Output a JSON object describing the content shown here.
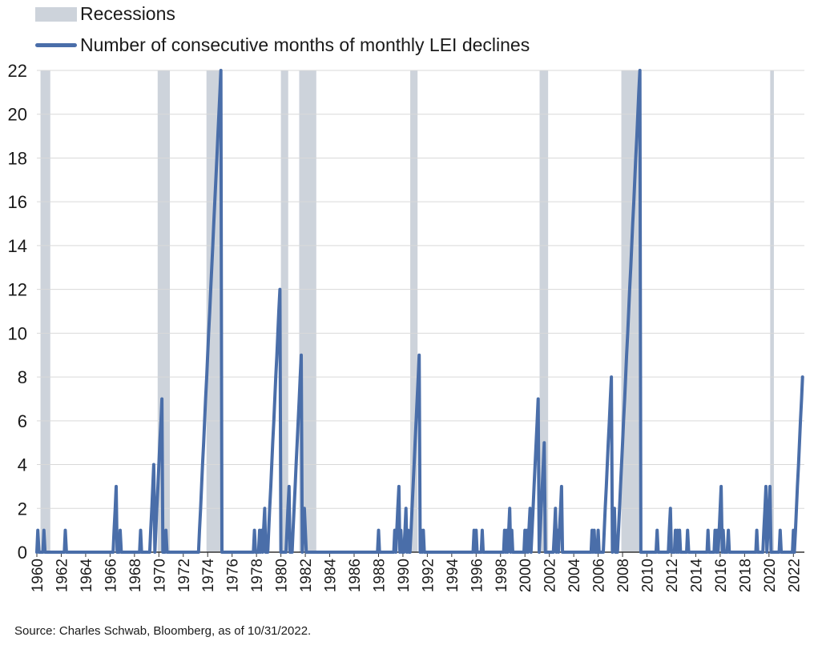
{
  "legend": {
    "recessions": "Recessions",
    "series": "Number of consecutive months of monthly LEI declines"
  },
  "source": "Source: Charles Schwab, Bloomberg, as of 10/31/2022.",
  "colors": {
    "line": "#4a6ea9",
    "recession": "#cdd3db",
    "grid": "#d9d9d9",
    "axis": "#333333"
  },
  "chart_data": {
    "type": "line",
    "title": "",
    "xlabel": "",
    "ylabel": "",
    "xlim": [
      1960,
      2022.9
    ],
    "ylim": [
      0,
      22
    ],
    "grid": "horizontal",
    "legend_position": "top-left",
    "y_ticks": [
      "0",
      "2",
      "4",
      "6",
      "8",
      "10",
      "12",
      "14",
      "16",
      "18",
      "20",
      "22"
    ],
    "x_ticks": [
      "1960",
      "1962",
      "1964",
      "1966",
      "1968",
      "1970",
      "1972",
      "1974",
      "1976",
      "1978",
      "1980",
      "1982",
      "1984",
      "1986",
      "1988",
      "1990",
      "1992",
      "1994",
      "1996",
      "1998",
      "2000",
      "2002",
      "2004",
      "2006",
      "2008",
      "2010",
      "2012",
      "2014",
      "2016",
      "2018",
      "2020",
      "2022"
    ],
    "recessions": [
      [
        1960.3,
        1961.1
      ],
      [
        1969.9,
        1970.9
      ],
      [
        1973.9,
        1975.2
      ],
      [
        1980.0,
        1980.6
      ],
      [
        1981.5,
        1982.9
      ],
      [
        1990.6,
        1991.2
      ],
      [
        2001.2,
        2001.9
      ],
      [
        2007.9,
        2009.5
      ],
      [
        2020.1,
        2020.4
      ]
    ],
    "series": [
      {
        "name": "Number of consecutive months of monthly LEI declines",
        "points": [
          [
            1960.0,
            0
          ],
          [
            1960.08,
            1
          ],
          [
            1960.17,
            0
          ],
          [
            1960.5,
            0
          ],
          [
            1960.58,
            1
          ],
          [
            1960.67,
            0
          ],
          [
            1962.25,
            0
          ],
          [
            1962.33,
            1
          ],
          [
            1962.42,
            0
          ],
          [
            1966.25,
            0
          ],
          [
            1966.33,
            1
          ],
          [
            1966.42,
            2
          ],
          [
            1966.5,
            3
          ],
          [
            1966.58,
            0
          ],
          [
            1966.75,
            0
          ],
          [
            1966.83,
            1
          ],
          [
            1966.92,
            0
          ],
          [
            1968.42,
            0
          ],
          [
            1968.5,
            1
          ],
          [
            1968.58,
            0
          ],
          [
            1969.25,
            0
          ],
          [
            1969.33,
            1
          ],
          [
            1969.42,
            2
          ],
          [
            1969.5,
            3
          ],
          [
            1969.58,
            4
          ],
          [
            1969.67,
            0
          ],
          [
            1969.75,
            1
          ],
          [
            1969.83,
            2
          ],
          [
            1969.92,
            3
          ],
          [
            1970.0,
            4
          ],
          [
            1970.08,
            5
          ],
          [
            1970.17,
            6
          ],
          [
            1970.25,
            7
          ],
          [
            1970.33,
            0
          ],
          [
            1970.5,
            0
          ],
          [
            1970.58,
            1
          ],
          [
            1970.67,
            0
          ],
          [
            1973.25,
            0
          ],
          [
            1973.33,
            1
          ],
          [
            1973.42,
            2
          ],
          [
            1973.5,
            3
          ],
          [
            1973.58,
            4
          ],
          [
            1973.67,
            5
          ],
          [
            1973.75,
            6
          ],
          [
            1973.83,
            7
          ],
          [
            1973.92,
            8
          ],
          [
            1974.0,
            9
          ],
          [
            1974.08,
            10
          ],
          [
            1974.17,
            11
          ],
          [
            1974.25,
            12
          ],
          [
            1974.33,
            13
          ],
          [
            1974.42,
            14
          ],
          [
            1974.5,
            15
          ],
          [
            1974.58,
            16
          ],
          [
            1974.67,
            17
          ],
          [
            1974.75,
            18
          ],
          [
            1974.83,
            19
          ],
          [
            1974.92,
            20
          ],
          [
            1975.0,
            21
          ],
          [
            1975.08,
            22
          ],
          [
            1975.17,
            0
          ],
          [
            1977.75,
            0
          ],
          [
            1977.83,
            1
          ],
          [
            1977.92,
            0
          ],
          [
            1978.17,
            0
          ],
          [
            1978.25,
            1
          ],
          [
            1978.33,
            0
          ],
          [
            1978.42,
            1
          ],
          [
            1978.5,
            0
          ],
          [
            1978.58,
            1
          ],
          [
            1978.67,
            2
          ],
          [
            1978.75,
            0
          ],
          [
            1978.92,
            0
          ],
          [
            1979.0,
            1
          ],
          [
            1979.08,
            2
          ],
          [
            1979.17,
            3
          ],
          [
            1979.25,
            4
          ],
          [
            1979.33,
            5
          ],
          [
            1979.42,
            6
          ],
          [
            1979.5,
            7
          ],
          [
            1979.58,
            8
          ],
          [
            1979.67,
            9
          ],
          [
            1979.75,
            10
          ],
          [
            1979.83,
            11
          ],
          [
            1979.92,
            12
          ],
          [
            1980.0,
            0
          ],
          [
            1980.42,
            0
          ],
          [
            1980.5,
            1
          ],
          [
            1980.58,
            2
          ],
          [
            1980.67,
            3
          ],
          [
            1980.75,
            0
          ],
          [
            1980.92,
            0
          ],
          [
            1981.0,
            1
          ],
          [
            1981.08,
            2
          ],
          [
            1981.17,
            3
          ],
          [
            1981.25,
            4
          ],
          [
            1981.33,
            5
          ],
          [
            1981.42,
            6
          ],
          [
            1981.5,
            7
          ],
          [
            1981.58,
            8
          ],
          [
            1981.67,
            9
          ],
          [
            1981.75,
            0
          ],
          [
            1981.83,
            1
          ],
          [
            1981.92,
            2
          ],
          [
            1982.0,
            1
          ],
          [
            1982.08,
            0
          ],
          [
            1987.92,
            0
          ],
          [
            1988.0,
            1
          ],
          [
            1988.08,
            0
          ],
          [
            1989.25,
            0
          ],
          [
            1989.33,
            1
          ],
          [
            1989.42,
            0
          ],
          [
            1989.5,
            1
          ],
          [
            1989.58,
            2
          ],
          [
            1989.67,
            3
          ],
          [
            1989.75,
            0
          ],
          [
            1989.83,
            1
          ],
          [
            1989.92,
            0
          ],
          [
            1990.08,
            0
          ],
          [
            1990.17,
            1
          ],
          [
            1990.25,
            2
          ],
          [
            1990.33,
            0
          ],
          [
            1990.42,
            1
          ],
          [
            1990.5,
            0
          ],
          [
            1990.58,
            0
          ],
          [
            1990.67,
            1
          ],
          [
            1990.75,
            2
          ],
          [
            1990.83,
            3
          ],
          [
            1990.92,
            4
          ],
          [
            1991.0,
            5
          ],
          [
            1991.08,
            6
          ],
          [
            1991.17,
            7
          ],
          [
            1991.25,
            8
          ],
          [
            1991.33,
            9
          ],
          [
            1991.42,
            0
          ],
          [
            1991.5,
            1
          ],
          [
            1991.58,
            0
          ],
          [
            1991.67,
            1
          ],
          [
            1991.75,
            0
          ],
          [
            1995.75,
            0
          ],
          [
            1995.83,
            1
          ],
          [
            1995.92,
            0
          ],
          [
            1996.0,
            1
          ],
          [
            1996.08,
            0
          ],
          [
            1996.42,
            0
          ],
          [
            1996.5,
            1
          ],
          [
            1996.58,
            0
          ],
          [
            1998.25,
            0
          ],
          [
            1998.33,
            1
          ],
          [
            1998.42,
            0
          ],
          [
            1998.5,
            1
          ],
          [
            1998.58,
            0
          ],
          [
            1998.67,
            1
          ],
          [
            1998.75,
            2
          ],
          [
            1998.83,
            0
          ],
          [
            1998.92,
            1
          ],
          [
            1999.0,
            0
          ],
          [
            1999.92,
            0
          ],
          [
            2000.0,
            1
          ],
          [
            2000.08,
            0
          ],
          [
            2000.17,
            1
          ],
          [
            2000.25,
            0
          ],
          [
            2000.33,
            1
          ],
          [
            2000.42,
            2
          ],
          [
            2000.5,
            0
          ],
          [
            2000.58,
            1
          ],
          [
            2000.67,
            2
          ],
          [
            2000.75,
            3
          ],
          [
            2000.83,
            4
          ],
          [
            2000.92,
            5
          ],
          [
            2001.0,
            6
          ],
          [
            2001.08,
            7
          ],
          [
            2001.17,
            0
          ],
          [
            2001.25,
            1
          ],
          [
            2001.33,
            2
          ],
          [
            2001.42,
            3
          ],
          [
            2001.5,
            4
          ],
          [
            2001.58,
            5
          ],
          [
            2001.67,
            0
          ],
          [
            2002.33,
            0
          ],
          [
            2002.42,
            1
          ],
          [
            2002.5,
            2
          ],
          [
            2002.58,
            0
          ],
          [
            2002.67,
            1
          ],
          [
            2002.75,
            0
          ],
          [
            2002.83,
            1
          ],
          [
            2002.92,
            2
          ],
          [
            2003.0,
            3
          ],
          [
            2003.08,
            0
          ],
          [
            2005.42,
            0
          ],
          [
            2005.5,
            1
          ],
          [
            2005.58,
            0
          ],
          [
            2005.67,
            1
          ],
          [
            2005.75,
            0
          ],
          [
            2005.92,
            0
          ],
          [
            2006.0,
            1
          ],
          [
            2006.08,
            0
          ],
          [
            2006.42,
            0
          ],
          [
            2006.5,
            1
          ],
          [
            2006.58,
            2
          ],
          [
            2006.67,
            3
          ],
          [
            2006.75,
            4
          ],
          [
            2006.83,
            5
          ],
          [
            2006.92,
            6
          ],
          [
            2007.0,
            7
          ],
          [
            2007.08,
            8
          ],
          [
            2007.17,
            0
          ],
          [
            2007.25,
            1
          ],
          [
            2007.33,
            2
          ],
          [
            2007.42,
            0
          ],
          [
            2007.58,
            0
          ],
          [
            2007.67,
            1
          ],
          [
            2007.75,
            2
          ],
          [
            2007.83,
            3
          ],
          [
            2007.92,
            4
          ],
          [
            2008.0,
            5
          ],
          [
            2008.08,
            6
          ],
          [
            2008.17,
            7
          ],
          [
            2008.25,
            8
          ],
          [
            2008.33,
            9
          ],
          [
            2008.42,
            10
          ],
          [
            2008.5,
            11
          ],
          [
            2008.58,
            12
          ],
          [
            2008.67,
            13
          ],
          [
            2008.75,
            14
          ],
          [
            2008.83,
            15
          ],
          [
            2008.92,
            16
          ],
          [
            2009.0,
            17
          ],
          [
            2009.08,
            18
          ],
          [
            2009.17,
            19
          ],
          [
            2009.25,
            20
          ],
          [
            2009.33,
            21
          ],
          [
            2009.42,
            22
          ],
          [
            2009.5,
            0
          ],
          [
            2010.75,
            0
          ],
          [
            2010.83,
            1
          ],
          [
            2010.92,
            0
          ],
          [
            2011.75,
            0
          ],
          [
            2011.83,
            1
          ],
          [
            2011.92,
            2
          ],
          [
            2012.0,
            0
          ],
          [
            2012.25,
            0
          ],
          [
            2012.33,
            1
          ],
          [
            2012.42,
            0
          ],
          [
            2012.5,
            1
          ],
          [
            2012.58,
            0
          ],
          [
            2012.67,
            1
          ],
          [
            2012.75,
            0
          ],
          [
            2013.25,
            0
          ],
          [
            2013.33,
            1
          ],
          [
            2013.42,
            0
          ],
          [
            2014.92,
            0
          ],
          [
            2015.0,
            1
          ],
          [
            2015.08,
            0
          ],
          [
            2015.5,
            0
          ],
          [
            2015.58,
            1
          ],
          [
            2015.67,
            0
          ],
          [
            2015.75,
            1
          ],
          [
            2015.83,
            0
          ],
          [
            2015.92,
            1
          ],
          [
            2016.0,
            2
          ],
          [
            2016.08,
            3
          ],
          [
            2016.17,
            0
          ],
          [
            2016.25,
            1
          ],
          [
            2016.33,
            0
          ],
          [
            2016.58,
            0
          ],
          [
            2016.67,
            1
          ],
          [
            2016.75,
            0
          ],
          [
            2018.92,
            0
          ],
          [
            2019.0,
            1
          ],
          [
            2019.08,
            0
          ],
          [
            2019.5,
            0
          ],
          [
            2019.58,
            1
          ],
          [
            2019.67,
            2
          ],
          [
            2019.75,
            3
          ],
          [
            2019.83,
            0
          ],
          [
            2019.92,
            1
          ],
          [
            2020.0,
            2
          ],
          [
            2020.08,
            3
          ],
          [
            2020.17,
            0
          ],
          [
            2020.83,
            0
          ],
          [
            2020.92,
            1
          ],
          [
            2021.0,
            0
          ],
          [
            2021.92,
            0
          ],
          [
            2022.0,
            1
          ],
          [
            2022.08,
            0
          ],
          [
            2022.17,
            1
          ],
          [
            2022.25,
            2
          ],
          [
            2022.33,
            3
          ],
          [
            2022.42,
            4
          ],
          [
            2022.5,
            5
          ],
          [
            2022.58,
            6
          ],
          [
            2022.67,
            7
          ],
          [
            2022.75,
            8
          ]
        ]
      }
    ]
  }
}
